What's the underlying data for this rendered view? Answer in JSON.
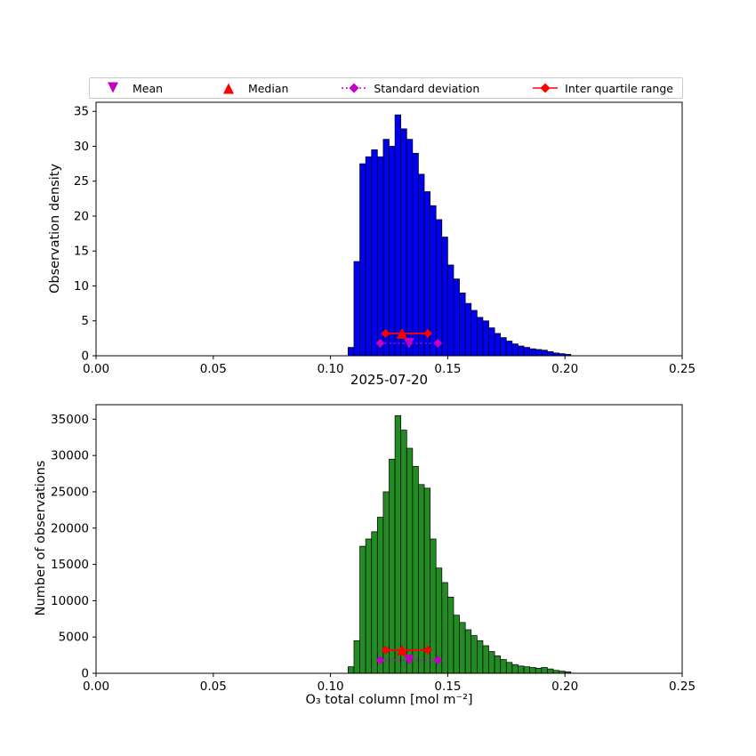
{
  "figure_bg": "#ffffff",
  "colors": {
    "bar_blue": "#0000f0",
    "bar_green": "#228B22",
    "mean_std_magenta": "#c400c4",
    "median_iqr_red": "#ff0000",
    "bar_edge": "#000000"
  },
  "legend": {
    "items": [
      {
        "label": "Mean",
        "shape": "triangle-down",
        "color": "#c400c4",
        "line": "none"
      },
      {
        "label": "Median",
        "shape": "triangle-up",
        "color": "#ff0000",
        "line": "none"
      },
      {
        "label": "Standard deviation",
        "shape": "diamond",
        "color": "#c400c4",
        "line": "dotted"
      },
      {
        "label": "Inter quartile range",
        "shape": "diamond",
        "color": "#ff0000",
        "line": "solid"
      }
    ]
  },
  "chart_data": [
    {
      "type": "bar",
      "title": "",
      "xlabel": "2025-07-20",
      "ylabel": "Observation density",
      "xlim": [
        0.0,
        0.25
      ],
      "ylim": [
        0,
        36.3
      ],
      "xticks": [
        0.0,
        0.05,
        0.1,
        0.15,
        0.2,
        0.25
      ],
      "xtick_labels": [
        "0.00",
        "0.05",
        "0.10",
        "0.15",
        "0.20",
        "0.25"
      ],
      "yticks": [
        0,
        5,
        10,
        15,
        20,
        25,
        30,
        35
      ],
      "ytick_labels": [
        "0",
        "5",
        "10",
        "15",
        "20",
        "25",
        "30",
        "35"
      ],
      "bar_color": "#0000f0",
      "edge_color": "#000000",
      "bin_start": 0.1075,
      "bin_width": 0.0025,
      "values": [
        1.2,
        13.5,
        27.5,
        28.5,
        29.5,
        28.5,
        31.0,
        30.0,
        34.5,
        32.5,
        31.0,
        29.0,
        26.0,
        23.5,
        21.5,
        19.5,
        17.0,
        13.0,
        11.0,
        9.0,
        7.5,
        6.5,
        5.5,
        5.0,
        4.0,
        3.2,
        2.6,
        2.1,
        1.7,
        1.4,
        1.2,
        1.0,
        0.9,
        0.8,
        0.6,
        0.4,
        0.3,
        0.2
      ],
      "markers": {
        "mean": 0.1335,
        "median": 0.1305,
        "q1": 0.1235,
        "q3": 0.1415,
        "std_lo": 0.1212,
        "std_hi": 0.1458,
        "iqr_marker_y": 3.2,
        "std_marker_y": 1.8,
        "std_color": "#c400c4",
        "iqr_color": "#ff0000"
      }
    },
    {
      "type": "bar",
      "title": "",
      "xlabel": "O₃ total column [mol m⁻²]",
      "ylabel": "Number of observations",
      "xlim": [
        0.0,
        0.25
      ],
      "ylim": [
        0,
        37000
      ],
      "xticks": [
        0.0,
        0.05,
        0.1,
        0.15,
        0.2,
        0.25
      ],
      "xtick_labels": [
        "0.00",
        "0.05",
        "0.10",
        "0.15",
        "0.20",
        "0.25"
      ],
      "yticks": [
        0,
        5000,
        10000,
        15000,
        20000,
        25000,
        30000,
        35000
      ],
      "ytick_labels": [
        "0",
        "5000",
        "10000",
        "15000",
        "20000",
        "25000",
        "30000",
        "35000"
      ],
      "bar_color": "#228B22",
      "edge_color": "#000000",
      "bin_start": 0.1075,
      "bin_width": 0.0025,
      "values": [
        900,
        4500,
        17500,
        18500,
        19500,
        21500,
        25000,
        29500,
        35500,
        33500,
        31000,
        28500,
        26000,
        25500,
        18500,
        14500,
        12500,
        10500,
        8000,
        7000,
        6000,
        5200,
        4500,
        3800,
        3000,
        2400,
        1900,
        1500,
        1200,
        1000,
        900,
        800,
        700,
        800,
        600,
        400,
        300,
        200
      ],
      "markers": {
        "mean": 0.1335,
        "median": 0.1305,
        "q1": 0.1235,
        "q3": 0.1415,
        "std_lo": 0.1212,
        "std_hi": 0.1458,
        "iqr_marker_y": 3200,
        "std_marker_y": 1800,
        "std_color": "#c400c4",
        "iqr_color": "#ff0000"
      }
    }
  ]
}
